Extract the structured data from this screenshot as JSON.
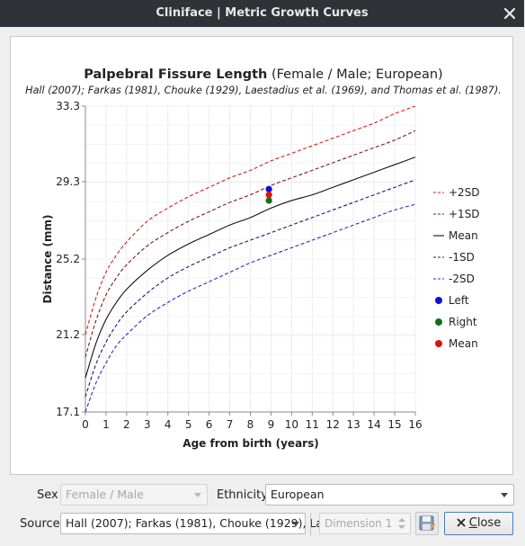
{
  "window": {
    "title": "Cliniface | Metric Growth Curves",
    "close_icon": "close-icon"
  },
  "chart_data": {
    "type": "line",
    "title_bold": "Palpebral Fissure Length",
    "title_rest": " (Female / Male; European)",
    "subtitle": "Hall (2007); Farkas (1981), Chouke (1929), Laestadius et al. (1969), and Thomas et al. (1987).",
    "xlabel": "Age from birth (years)",
    "ylabel": "Distance (mm)",
    "xlim": [
      0,
      16
    ],
    "ylim": [
      17.1,
      33.3
    ],
    "xticks": [
      "0",
      "1",
      "2",
      "3",
      "4",
      "5",
      "6",
      "7",
      "8",
      "9",
      "10",
      "11",
      "12",
      "13",
      "14",
      "15",
      "16"
    ],
    "yticks": [
      "17.1",
      "21.2",
      "25.2",
      "29.3",
      "33.3"
    ],
    "grid": true,
    "legend_position": "right",
    "x": [
      0,
      0.5,
      1,
      1.5,
      2,
      3,
      4,
      5,
      6,
      7,
      8,
      9,
      10,
      11,
      12,
      13,
      14,
      15,
      16
    ],
    "series": [
      {
        "name": "+2SD",
        "color": "#d42020",
        "dash": true,
        "values": [
          21.2,
          23.1,
          24.5,
          25.4,
          26.1,
          27.2,
          27.9,
          28.5,
          29.0,
          29.5,
          29.9,
          30.4,
          30.8,
          31.2,
          31.6,
          32.0,
          32.4,
          32.9,
          33.3
        ]
      },
      {
        "name": "+1SD",
        "color": "#7a1a1a",
        "dash": true,
        "values": [
          20.0,
          21.9,
          23.3,
          24.2,
          24.9,
          25.9,
          26.6,
          27.2,
          27.7,
          28.2,
          28.6,
          29.1,
          29.5,
          29.9,
          30.3,
          30.7,
          31.1,
          31.5,
          32.0
        ]
      },
      {
        "name": "Mean",
        "color": "#111111",
        "dash": false,
        "values": [
          18.9,
          20.7,
          22.0,
          22.9,
          23.6,
          24.6,
          25.4,
          26.0,
          26.5,
          27.0,
          27.4,
          27.9,
          28.3,
          28.6,
          29.0,
          29.4,
          29.8,
          30.2,
          30.6
        ]
      },
      {
        "name": "-1SD",
        "color": "#1a1a7a",
        "dash": true,
        "values": [
          17.9,
          19.6,
          20.8,
          21.7,
          22.4,
          23.4,
          24.2,
          24.8,
          25.3,
          25.8,
          26.2,
          26.6,
          27.0,
          27.4,
          27.8,
          28.2,
          28.6,
          29.0,
          29.4
        ]
      },
      {
        "name": "-2SD",
        "color": "#2030d0",
        "dash": true,
        "values": [
          17.1,
          18.6,
          19.7,
          20.6,
          21.2,
          22.2,
          22.9,
          23.5,
          24.0,
          24.5,
          25.0,
          25.4,
          25.8,
          26.2,
          26.6,
          27.0,
          27.4,
          27.8,
          28.1
        ]
      }
    ],
    "points": [
      {
        "name": "Left",
        "color": "#1010cc",
        "x": 8.9,
        "y": 28.9
      },
      {
        "name": "Right",
        "color": "#157015",
        "x": 8.9,
        "y": 28.3
      },
      {
        "name": "Mean",
        "color": "#e01010",
        "x": 8.9,
        "y": 28.6
      }
    ]
  },
  "controls": {
    "sex_label": "Sex",
    "sex_value": "Female / Male",
    "ethnicity_label": "Ethnicity",
    "ethnicity_value": "European",
    "source_label": "Source",
    "source_value": "Hall (2007); Farkas (1981), Chouke (1929), La",
    "dimension_value": "Dimension 1",
    "save_icon": "save-icon",
    "close_icon": "close-x-icon",
    "close_label_underlined": "C",
    "close_label_rest": "lose"
  }
}
